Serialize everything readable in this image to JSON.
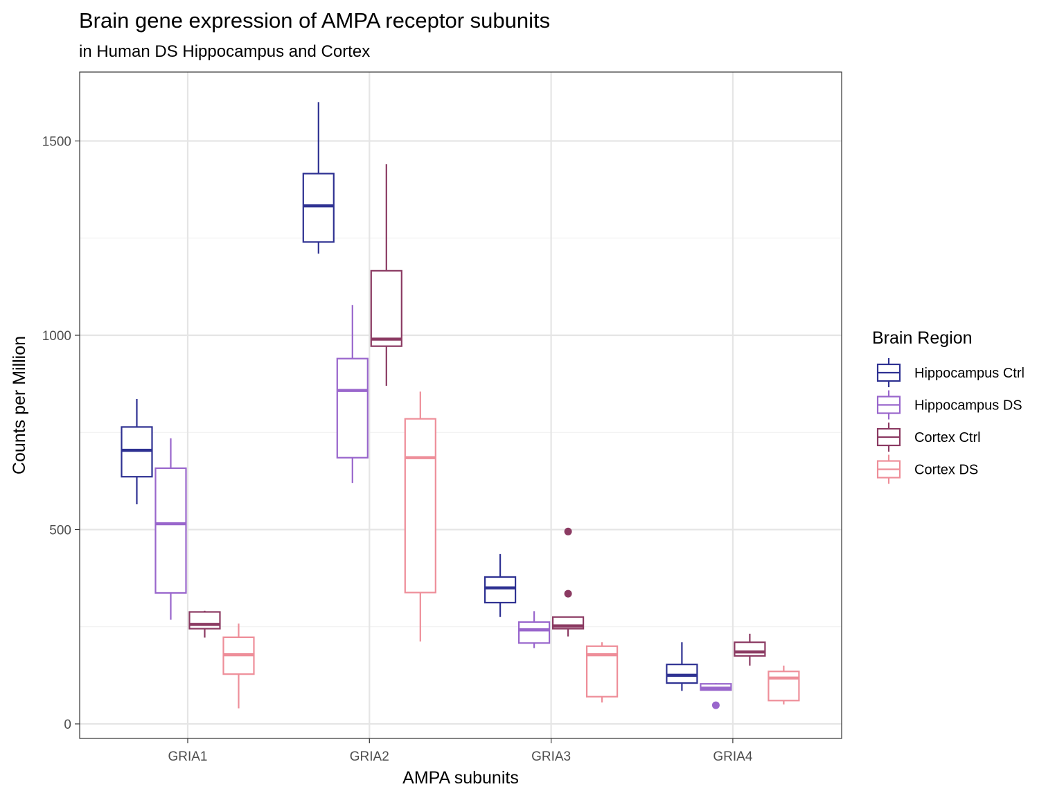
{
  "chart_data": {
    "type": "boxplot",
    "title": "Brain gene expression of AMPA receptor subunits",
    "subtitle": "in Human DS Hippocampus and Cortex",
    "xlabel": "AMPA subunits",
    "ylabel": "Counts per Million",
    "ylim": [
      -40,
      1675
    ],
    "yticks": [
      0,
      500,
      1000,
      1500
    ],
    "grid": true,
    "legend": {
      "title": "Brain Region",
      "placement": "right"
    },
    "categories": [
      "GRIA1",
      "GRIA2",
      "GRIA3",
      "GRIA4"
    ],
    "series": [
      {
        "name": "Hippocampus Ctrl",
        "color": "#2e3192",
        "boxes": [
          {
            "min": 565,
            "q1": 636,
            "median": 704,
            "q3": 764,
            "max": 836,
            "outliers": []
          },
          {
            "min": 1210,
            "q1": 1240,
            "median": 1333,
            "q3": 1416,
            "max": 1600,
            "outliers": []
          },
          {
            "min": 275,
            "q1": 312,
            "median": 350,
            "q3": 378,
            "max": 437,
            "outliers": []
          },
          {
            "min": 85,
            "q1": 105,
            "median": 125,
            "q3": 153,
            "max": 210,
            "outliers": []
          }
        ]
      },
      {
        "name": "Hippocampus DS",
        "color": "#9966cc",
        "boxes": [
          {
            "min": 268,
            "q1": 337,
            "median": 515,
            "q3": 658,
            "max": 735,
            "outliers": []
          },
          {
            "min": 620,
            "q1": 685,
            "median": 858,
            "q3": 940,
            "max": 1078,
            "outliers": []
          },
          {
            "min": 195,
            "q1": 208,
            "median": 242,
            "q3": 262,
            "max": 290,
            "outliers": []
          },
          {
            "min": 87,
            "q1": 87,
            "median": 92,
            "q3": 103,
            "max": 105,
            "outliers": [
              48
            ]
          }
        ]
      },
      {
        "name": "Cortex Ctrl",
        "color": "#8b3a62",
        "boxes": [
          {
            "min": 222,
            "q1": 245,
            "median": 256,
            "q3": 288,
            "max": 291,
            "outliers": []
          },
          {
            "min": 870,
            "q1": 972,
            "median": 990,
            "q3": 1166,
            "max": 1440,
            "outliers": []
          },
          {
            "min": 225,
            "q1": 245,
            "median": 252,
            "q3": 275,
            "max": 275,
            "outliers": [
              495,
              335
            ]
          },
          {
            "min": 150,
            "q1": 175,
            "median": 185,
            "q3": 210,
            "max": 232,
            "outliers": []
          }
        ]
      },
      {
        "name": "Cortex DS",
        "color": "#ee8e99",
        "boxes": [
          {
            "min": 40,
            "q1": 128,
            "median": 178,
            "q3": 223,
            "max": 258,
            "outliers": []
          },
          {
            "min": 212,
            "q1": 338,
            "median": 685,
            "q3": 785,
            "max": 855,
            "outliers": []
          },
          {
            "min": 55,
            "q1": 70,
            "median": 178,
            "q3": 200,
            "max": 210,
            "outliers": []
          },
          {
            "min": 50,
            "q1": 60,
            "median": 118,
            "q3": 135,
            "max": 150,
            "outliers": []
          }
        ]
      }
    ]
  }
}
